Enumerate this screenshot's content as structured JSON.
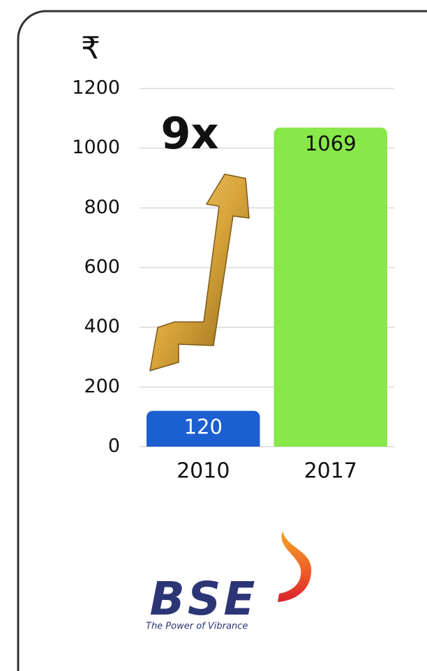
{
  "chart_data": {
    "type": "bar",
    "y_label": "₹",
    "annotation": "9x",
    "categories": [
      "2010",
      "2017"
    ],
    "values": [
      120,
      1069
    ],
    "colors": [
      "#1c5fd1",
      "#88e84a"
    ],
    "ylim": [
      0,
      1200
    ],
    "yticks": [
      0,
      200,
      400,
      600,
      800,
      1000,
      1200
    ],
    "grid": true
  },
  "logo": {
    "name": "BSE",
    "tagline": "The Power of Vibrance"
  }
}
